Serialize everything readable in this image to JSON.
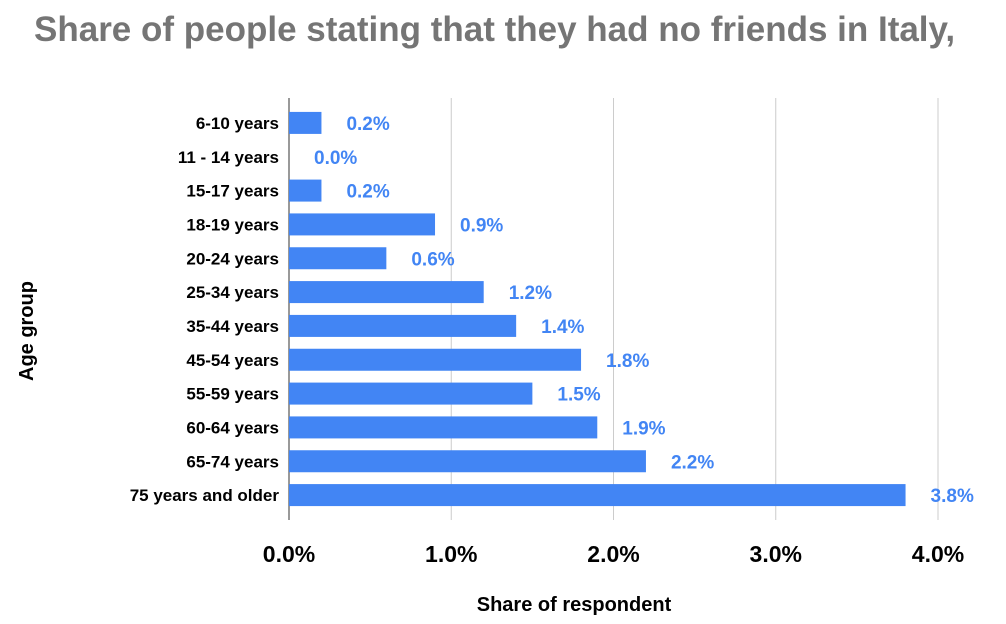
{
  "chart_data": {
    "type": "bar",
    "orientation": "horizontal",
    "title": "Share of people stating that they had no friends in Italy,",
    "xlabel": "Share of respondent",
    "ylabel": "Age group",
    "categories": [
      "6-10 years",
      "11 - 14 years",
      "15-17 years",
      "18-19 years",
      "20-24 years",
      "25-34 years",
      "35-44 years",
      "45-54 years",
      "55-59 years",
      "60-64 years",
      "65-74 years",
      "75 years and older"
    ],
    "values": [
      0.2,
      0.0,
      0.2,
      0.9,
      0.6,
      1.2,
      1.4,
      1.8,
      1.5,
      1.9,
      2.2,
      3.8
    ],
    "data_labels": [
      "0.2%",
      "0.0%",
      "0.2%",
      "0.9%",
      "0.6%",
      "1.2%",
      "1.4%",
      "1.8%",
      "1.5%",
      "1.9%",
      "2.2%",
      "3.8%"
    ],
    "x_ticks": [
      0,
      1,
      2,
      3,
      4
    ],
    "x_tick_labels": [
      "0.0%",
      "1.0%",
      "2.0%",
      "3.0%",
      "4.0%"
    ],
    "xlim": [
      0,
      4
    ],
    "grid": true,
    "bar_color": "#4285f4",
    "label_color": "#4285f4",
    "gridline_color": "#cccccc",
    "title_color": "#757575"
  }
}
